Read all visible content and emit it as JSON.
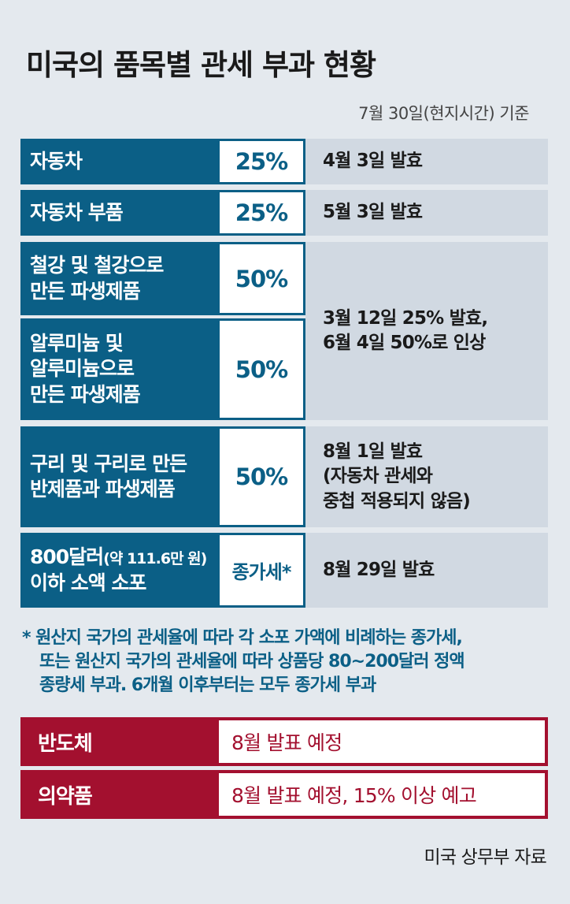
{
  "title": "미국의 품목별 관세 부과 현황",
  "as_of": "7월 30일(현지시간) 기준",
  "rows": [
    {
      "item": "자동차",
      "rate": "25%",
      "note": "4월 3일 발효"
    },
    {
      "item": "자동차 부품",
      "rate": "25%",
      "note": "5월 3일 발효"
    },
    {
      "item_lines": [
        "철강 및 철강으로",
        "만든 파생제품"
      ],
      "rate": "50%"
    },
    {
      "item_lines": [
        "알루미늄 및",
        "알루미늄으로",
        "만든 파생제품"
      ],
      "rate": "50%"
    },
    {
      "item_lines": [
        "구리 및 구리로 만든",
        "반제품과 파생제품"
      ],
      "rate": "50%",
      "note_lines": [
        "8월 1일 발효",
        "(자동차 관세와",
        "중첩 적용되지 않음)"
      ]
    },
    {
      "item_line1": "800달러",
      "item_paren": "(약 111.6만 원)",
      "item_line2": "이하 소액 소포",
      "rate": "종가세*",
      "note": "8월 29일 발효"
    }
  ],
  "metal_note_lines": [
    "3월 12일 25% 발효,",
    "6월 4일 50%로 인상"
  ],
  "footnote_lines": [
    "* 원산지 국가의 관세율에 따라 각 소포 가액에 비례하는 종가세,",
    "또는 원산지 국가의 관세율에 따라 상품당 80~200달러 정액",
    "종량세 부과. 6개월 이후부터는 모두 종가세 부과"
  ],
  "pending": [
    {
      "item": "반도체",
      "status": "8월 발표 예정"
    },
    {
      "item": "의약품",
      "status": "8월 발표 예정, 15% 이상 예고"
    }
  ],
  "source": "미국 상무부 자료",
  "colors": {
    "blue": "#0b5f86",
    "red": "#a3102f",
    "gray_cell": "#d1d9e2",
    "background": "#e4e9ee"
  }
}
